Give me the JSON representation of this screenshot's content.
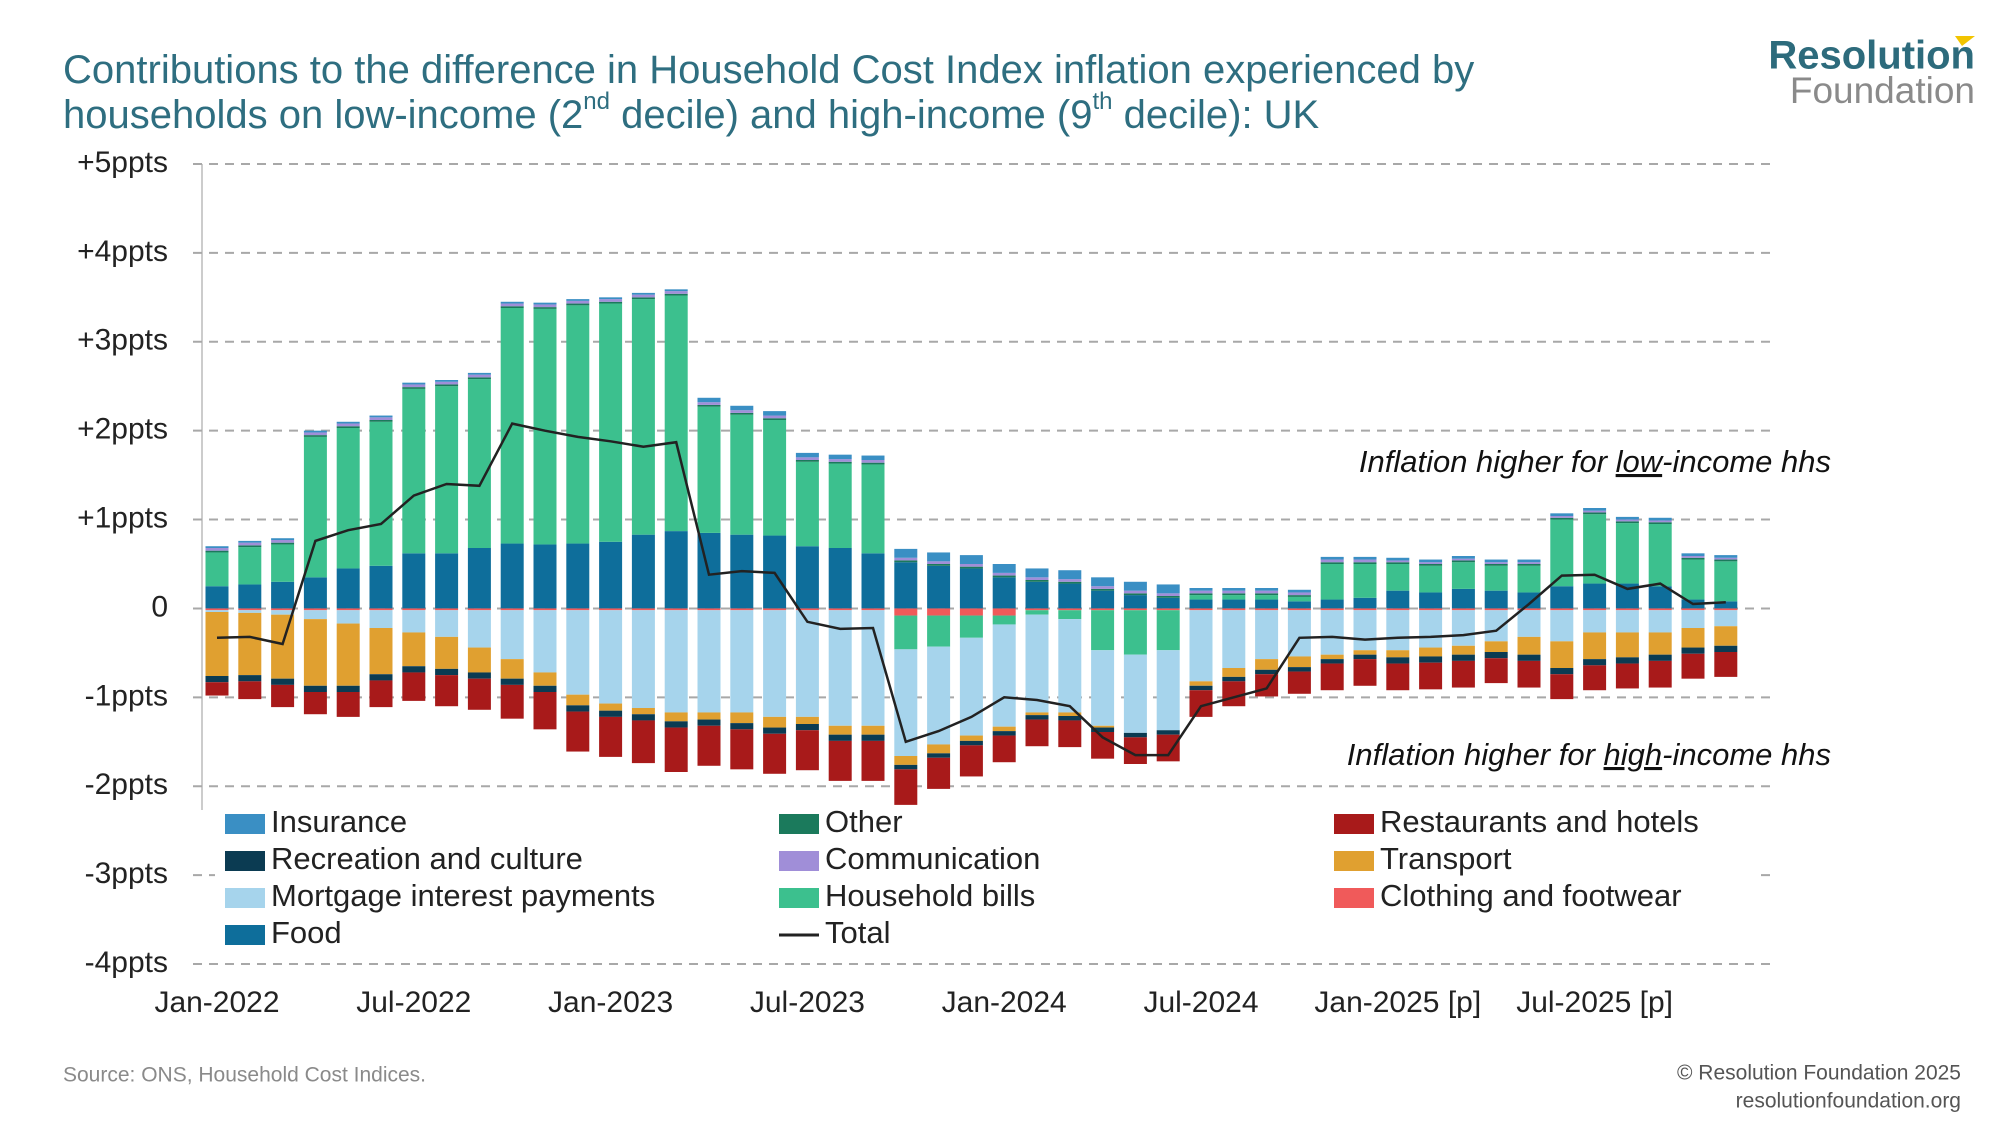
{
  "chart_data": {
    "type": "bar",
    "title": [
      "Contributions to the difference in Household Cost Index inflation experienced by",
      "households on low-income (2",
      "nd",
      " decile) and high-income (9",
      "th",
      " decile): UK"
    ],
    "logo": [
      "Resolution",
      "Foundation"
    ],
    "source": "Source: ONS, Household Cost Indices.",
    "credit": [
      "© Resolution Foundation 2025",
      "resolutionfoundation.org"
    ],
    "annotations": [
      [
        "Inflation higher for ",
        "low",
        "-income hhs"
      ],
      [
        "Inflation higher for ",
        "high",
        "-income hhs"
      ]
    ],
    "categories": [
      "Jan-2022",
      null,
      null,
      null,
      null,
      null,
      "Jul-2022",
      null,
      null,
      null,
      null,
      null,
      "Jan-2023",
      null,
      null,
      null,
      null,
      null,
      "Jul-2023",
      null,
      null,
      null,
      null,
      null,
      "Jan-2024",
      null,
      null,
      null,
      null,
      null,
      "Jul-2024",
      null,
      null,
      null,
      null,
      null,
      "Jan-2025 [p]",
      null,
      null,
      null,
      null,
      null,
      "Jul-2025 [p]",
      null,
      null,
      null,
      null
    ],
    "ylim": [
      -4,
      5
    ],
    "yticks": [
      {
        "value": 5,
        "label": "+5ppts"
      },
      {
        "value": 4,
        "label": "+4ppts"
      },
      {
        "value": 3,
        "label": "+3ppts"
      },
      {
        "value": 2,
        "label": "+2ppts"
      },
      {
        "value": 1,
        "label": "+1ppts"
      },
      0,
      {
        "value": -1,
        "label": "-1ppts"
      },
      {
        "value": -2,
        "label": "-2ppts"
      },
      {
        "value": -3,
        "label": "-3ppts"
      },
      {
        "value": -4,
        "label": "-4ppts"
      }
    ],
    "grid": true,
    "series": [
      {
        "name": "Insurance",
        "color": "#3a8fc4",
        "values": [
          0.02,
          0.02,
          0.02,
          0.02,
          0.02,
          0.02,
          0.02,
          0.02,
          0.02,
          0.02,
          0.02,
          0.02,
          0.02,
          0.02,
          0.02,
          0.05,
          0.05,
          0.05,
          0.05,
          0.05,
          0.05,
          0.1,
          0.1,
          0.1,
          0.1,
          0.1,
          0.1,
          0.1,
          0.1,
          0.1,
          0.03,
          0.03,
          0.03,
          0.03,
          0.03,
          0.03,
          0.03,
          0.03,
          0.03,
          0.03,
          0.03,
          0.03,
          0.03,
          0.03,
          0.03,
          0.03,
          0.03
        ]
      },
      {
        "name": "Recreation and culture",
        "color": "#0b3b52",
        "values": [
          -0.07,
          -0.07,
          -0.07,
          -0.07,
          -0.07,
          -0.07,
          -0.07,
          -0.07,
          -0.07,
          -0.07,
          -0.07,
          -0.07,
          -0.07,
          -0.07,
          -0.07,
          -0.07,
          -0.07,
          -0.07,
          -0.07,
          -0.07,
          -0.07,
          -0.05,
          -0.05,
          -0.05,
          -0.05,
          -0.05,
          -0.05,
          -0.05,
          -0.05,
          -0.05,
          -0.05,
          -0.05,
          -0.05,
          -0.05,
          -0.05,
          -0.05,
          -0.07,
          -0.07,
          -0.07,
          -0.07,
          -0.07,
          -0.07,
          -0.07,
          -0.07,
          -0.07,
          -0.07,
          -0.07
        ]
      },
      {
        "name": "Mortgage interest payments",
        "color": "#a6d4ec",
        "values": [
          -0.02,
          -0.03,
          -0.05,
          -0.1,
          -0.15,
          -0.2,
          -0.25,
          -0.3,
          -0.42,
          -0.55,
          -0.7,
          -0.95,
          -1.05,
          -1.1,
          -1.15,
          -1.15,
          -1.15,
          -1.2,
          -1.2,
          -1.3,
          -1.3,
          -1.2,
          -1.1,
          -1.1,
          -1.15,
          -1.1,
          -1.05,
          -0.85,
          -0.88,
          -0.9,
          -0.8,
          -0.65,
          -0.55,
          -0.52,
          -0.5,
          -0.45,
          -0.45,
          -0.42,
          -0.4,
          -0.35,
          -0.3,
          -0.35,
          -0.25,
          -0.25,
          -0.25,
          -0.2,
          -0.18
        ]
      },
      {
        "name": "Food",
        "color": "#0e6e9b",
        "values": [
          0.25,
          0.27,
          0.3,
          0.35,
          0.45,
          0.48,
          0.62,
          0.62,
          0.68,
          0.73,
          0.72,
          0.73,
          0.75,
          0.83,
          0.87,
          0.85,
          0.83,
          0.82,
          0.7,
          0.68,
          0.62,
          0.52,
          0.48,
          0.45,
          0.35,
          0.3,
          0.28,
          0.2,
          0.15,
          0.12,
          0.1,
          0.1,
          0.1,
          0.08,
          0.1,
          0.12,
          0.2,
          0.18,
          0.22,
          0.2,
          0.18,
          0.25,
          0.28,
          0.28,
          0.25,
          0.1,
          0.08
        ]
      },
      {
        "name": "Other",
        "color": "#1b7a5c",
        "values": [
          0.02,
          0.02,
          0.02,
          0.02,
          0.02,
          0.02,
          0.02,
          0.02,
          0.02,
          0.02,
          0.02,
          0.02,
          0.02,
          0.02,
          0.02,
          0.02,
          0.02,
          0.02,
          0.02,
          0.02,
          0.02,
          0.02,
          0.02,
          0.02,
          0.02,
          0.02,
          0.02,
          0.02,
          0.02,
          0.02,
          0.02,
          0.02,
          0.02,
          0.02,
          0.02,
          0.02,
          0.02,
          0.02,
          0.02,
          0.02,
          0.02,
          0.02,
          0.02,
          0.02,
          0.02,
          0.02,
          0.02
        ]
      },
      {
        "name": "Communication",
        "color": "#a08ed8",
        "values": [
          0.03,
          0.03,
          0.03,
          0.03,
          0.03,
          0.03,
          0.03,
          0.03,
          0.03,
          0.03,
          0.03,
          0.03,
          0.03,
          0.03,
          0.03,
          0.03,
          0.03,
          0.03,
          0.03,
          0.03,
          0.03,
          0.03,
          0.03,
          0.03,
          0.03,
          0.03,
          0.03,
          0.03,
          0.03,
          0.03,
          0.03,
          0.03,
          0.03,
          0.03,
          0.03,
          0.03,
          0.02,
          0.02,
          0.02,
          0.02,
          0.02,
          0.02,
          0.02,
          0.02,
          0.02,
          0.02,
          0.02
        ]
      },
      {
        "name": "Household bills",
        "color": "#3cc08e",
        "values": [
          0.38,
          0.42,
          0.42,
          1.58,
          1.58,
          1.62,
          1.85,
          1.88,
          1.9,
          2.65,
          2.65,
          2.68,
          2.68,
          2.65,
          2.65,
          1.42,
          1.35,
          1.3,
          0.95,
          0.95,
          1.0,
          -0.38,
          -0.35,
          -0.25,
          -0.1,
          -0.05,
          -0.1,
          -0.45,
          -0.5,
          -0.45,
          0.05,
          0.05,
          0.05,
          0.05,
          0.4,
          0.38,
          0.3,
          0.3,
          0.3,
          0.28,
          0.3,
          0.75,
          0.78,
          0.68,
          0.7,
          0.45,
          0.45
        ]
      },
      {
        "name": "Total",
        "color": "#222222",
        "type": "line",
        "values": [
          -0.33,
          -0.32,
          -0.4,
          0.76,
          0.88,
          0.95,
          1.27,
          1.4,
          1.38,
          2.08,
          2.0,
          1.93,
          1.88,
          1.82,
          1.87,
          0.38,
          0.42,
          0.4,
          -0.15,
          -0.23,
          -0.22,
          -1.5,
          -1.38,
          -1.22,
          -1.0,
          -1.03,
          -1.1,
          -1.45,
          -1.65,
          -1.65,
          -1.1,
          -1.0,
          -0.9,
          -0.33,
          -0.32,
          -0.35,
          -0.33,
          -0.32,
          -0.3,
          -0.25,
          0.05,
          0.37,
          0.38,
          0.22,
          0.28,
          0.05,
          0.07
        ]
      },
      {
        "name": "Restaurants and hotels",
        "color": "#a81a1a",
        "values": [
          -0.15,
          -0.2,
          -0.25,
          -0.25,
          -0.28,
          -0.3,
          -0.32,
          -0.35,
          -0.35,
          -0.38,
          -0.42,
          -0.45,
          -0.45,
          -0.48,
          -0.5,
          -0.45,
          -0.45,
          -0.45,
          -0.45,
          -0.45,
          -0.45,
          -0.4,
          -0.35,
          -0.35,
          -0.3,
          -0.3,
          -0.3,
          -0.3,
          -0.3,
          -0.3,
          -0.3,
          -0.28,
          -0.25,
          -0.25,
          -0.3,
          -0.3,
          -0.3,
          -0.3,
          -0.3,
          -0.28,
          -0.3,
          -0.28,
          -0.28,
          -0.28,
          -0.3,
          -0.28,
          -0.28
        ]
      },
      {
        "name": "Transport",
        "color": "#e0a030",
        "values": [
          -0.72,
          -0.7,
          -0.72,
          -0.75,
          -0.7,
          -0.52,
          -0.38,
          -0.36,
          -0.28,
          -0.22,
          -0.15,
          -0.12,
          -0.08,
          -0.07,
          -0.1,
          -0.08,
          -0.12,
          -0.12,
          -0.08,
          -0.1,
          -0.1,
          -0.1,
          -0.1,
          -0.06,
          -0.05,
          -0.03,
          -0.04,
          -0.02,
          0,
          0,
          -0.05,
          -0.1,
          -0.12,
          -0.12,
          -0.05,
          -0.05,
          -0.08,
          -0.1,
          -0.1,
          -0.12,
          -0.2,
          -0.3,
          -0.3,
          -0.28,
          -0.25,
          -0.22,
          -0.22
        ]
      },
      {
        "name": "Clothing and footwear",
        "color": "#f05a5a",
        "values": [
          -0.02,
          -0.02,
          -0.02,
          -0.02,
          -0.02,
          -0.02,
          -0.02,
          -0.02,
          -0.02,
          -0.02,
          -0.02,
          -0.02,
          -0.02,
          -0.02,
          -0.02,
          -0.02,
          -0.02,
          -0.02,
          -0.02,
          -0.02,
          -0.02,
          -0.08,
          -0.08,
          -0.08,
          -0.08,
          -0.02,
          -0.02,
          -0.02,
          -0.02,
          -0.02,
          -0.02,
          -0.02,
          -0.02,
          -0.02,
          -0.02,
          -0.02,
          -0.02,
          -0.02,
          -0.02,
          -0.02,
          -0.02,
          -0.02,
          -0.02,
          -0.02,
          -0.02,
          -0.02,
          -0.02
        ]
      }
    ]
  }
}
